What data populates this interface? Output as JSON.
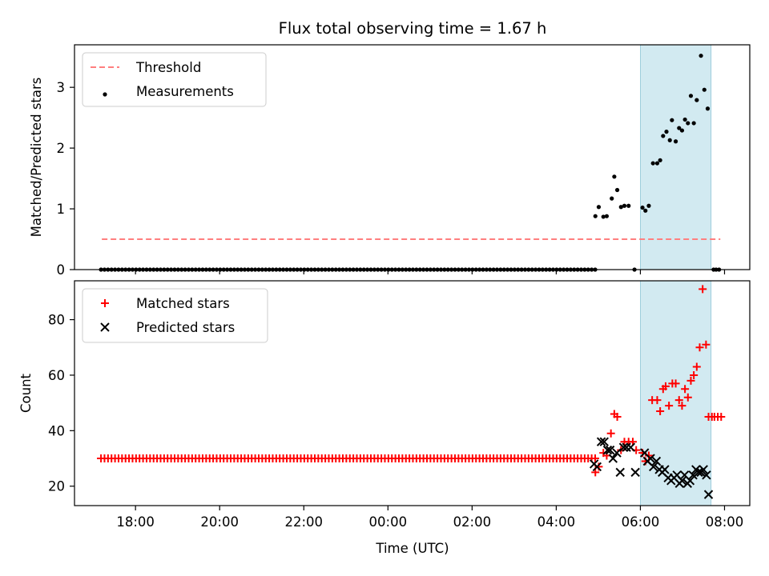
{
  "chart_data": {
    "type": "scatter",
    "title": "Flux total observing time = 1.67 h",
    "xlabel": "Time (UTC)",
    "x_unit": "hours of day (UTC)",
    "xlim": [
      16.55,
      32.6
    ],
    "xticks": [
      {
        "value": 18,
        "label": "18:00"
      },
      {
        "value": 20,
        "label": "20:00"
      },
      {
        "value": 22,
        "label": "22:00"
      },
      {
        "value": 24,
        "label": "00:00"
      },
      {
        "value": 26,
        "label": "02:00"
      },
      {
        "value": 28,
        "label": "04:00"
      },
      {
        "value": 30,
        "label": "06:00"
      },
      {
        "value": 32,
        "label": "08:00"
      }
    ],
    "highlight_span": {
      "from": 30.0,
      "to": 31.68,
      "color": "#add8e6"
    },
    "panels": [
      {
        "id": "ratio",
        "ylabel": "Matched/Predicted stars",
        "ylim": [
          0,
          3.7
        ],
        "yticks": [
          0,
          1,
          2,
          3
        ],
        "threshold": {
          "name": "Threshold",
          "value": 0.5,
          "x_from": 17.2,
          "x_to": 31.9,
          "color": "#ff7f7f"
        },
        "series": [
          {
            "name": "Measurements",
            "marker": "dot",
            "color": "#000000",
            "points": [
              [
                28.93,
                0.88
              ],
              [
                29.01,
                1.03
              ],
              [
                29.12,
                0.87
              ],
              [
                29.2,
                0.88
              ],
              [
                29.32,
                1.17
              ],
              [
                29.38,
                1.53
              ],
              [
                29.45,
                1.31
              ],
              [
                29.54,
                1.03
              ],
              [
                29.62,
                1.05
              ],
              [
                29.72,
                1.05
              ],
              [
                29.86,
                0.0
              ],
              [
                30.05,
                1.02
              ],
              [
                30.12,
                0.97
              ],
              [
                30.2,
                1.05
              ],
              [
                30.3,
                1.75
              ],
              [
                30.4,
                1.75
              ],
              [
                30.47,
                1.8
              ],
              [
                30.54,
                2.2
              ],
              [
                30.62,
                2.27
              ],
              [
                30.7,
                2.13
              ],
              [
                30.75,
                2.46
              ],
              [
                30.84,
                2.11
              ],
              [
                30.92,
                2.33
              ],
              [
                30.99,
                2.29
              ],
              [
                31.06,
                2.47
              ],
              [
                31.13,
                2.41
              ],
              [
                31.2,
                2.86
              ],
              [
                31.27,
                2.41
              ],
              [
                31.34,
                2.79
              ],
              [
                31.44,
                3.52
              ],
              [
                31.52,
                2.96
              ],
              [
                31.6,
                2.65
              ],
              [
                31.74,
                0.0
              ],
              [
                31.8,
                0.0
              ],
              [
                31.87,
                0.0
              ]
            ],
            "zero_run": {
              "from": 17.18,
              "to": 28.95,
              "step": 0.0833,
              "value": 0.0
            }
          }
        ],
        "legend": [
          "Threshold",
          "Measurements"
        ],
        "legend_loc": "upper left"
      },
      {
        "id": "counts",
        "ylabel": "Count",
        "ylim": [
          13,
          94
        ],
        "yticks": [
          20,
          40,
          60,
          80
        ],
        "series": [
          {
            "name": "Matched stars",
            "marker": "plus",
            "color": "#ff0000",
            "points": [
              [
                28.93,
                25
              ],
              [
                29.01,
                27
              ],
              [
                29.12,
                32
              ],
              [
                29.2,
                31
              ],
              [
                29.3,
                39
              ],
              [
                29.38,
                46
              ],
              [
                29.45,
                45
              ],
              [
                29.54,
                33
              ],
              [
                29.62,
                36
              ],
              [
                29.72,
                36
              ],
              [
                29.82,
                36
              ],
              [
                29.9,
                33
              ],
              [
                30.05,
                32
              ],
              [
                30.12,
                29
              ],
              [
                30.2,
                31
              ],
              [
                30.28,
                51
              ],
              [
                30.4,
                51
              ],
              [
                30.47,
                47
              ],
              [
                30.54,
                55
              ],
              [
                30.6,
                56
              ],
              [
                30.68,
                49
              ],
              [
                30.76,
                57
              ],
              [
                30.84,
                57
              ],
              [
                30.92,
                51
              ],
              [
                30.99,
                49
              ],
              [
                31.06,
                55
              ],
              [
                31.13,
                52
              ],
              [
                31.2,
                58
              ],
              [
                31.27,
                60
              ],
              [
                31.34,
                63
              ],
              [
                31.41,
                70
              ],
              [
                31.48,
                91
              ],
              [
                31.56,
                71
              ],
              [
                31.62,
                45
              ],
              [
                31.7,
                45
              ],
              [
                31.76,
                45
              ],
              [
                31.84,
                45
              ],
              [
                31.92,
                45
              ]
            ],
            "zero_run": {
              "from": 17.18,
              "to": 28.95,
              "step": 0.0833,
              "value": 30
            }
          },
          {
            "name": "Predicted stars",
            "marker": "x",
            "color": "#000000",
            "points": [
              [
                28.9,
                28
              ],
              [
                28.97,
                27
              ],
              [
                29.07,
                36
              ],
              [
                29.14,
                36
              ],
              [
                29.22,
                33
              ],
              [
                29.28,
                33
              ],
              [
                29.35,
                30
              ],
              [
                29.44,
                32
              ],
              [
                29.52,
                25
              ],
              [
                29.6,
                34
              ],
              [
                29.67,
                34
              ],
              [
                29.77,
                34
              ],
              [
                29.88,
                25
              ],
              [
                30.1,
                32
              ],
              [
                30.17,
                29
              ],
              [
                30.24,
                30
              ],
              [
                30.31,
                27
              ],
              [
                30.38,
                29
              ],
              [
                30.45,
                26
              ],
              [
                30.52,
                25
              ],
              [
                30.58,
                26
              ],
              [
                30.66,
                23
              ],
              [
                30.73,
                22
              ],
              [
                30.8,
                23
              ],
              [
                30.87,
                24
              ],
              [
                30.93,
                21
              ],
              [
                30.99,
                22
              ],
              [
                31.05,
                24
              ],
              [
                31.12,
                21
              ],
              [
                31.18,
                22
              ],
              [
                31.25,
                24
              ],
              [
                31.32,
                26
              ],
              [
                31.38,
                25
              ],
              [
                31.44,
                25
              ],
              [
                31.5,
                26
              ],
              [
                31.57,
                24
              ],
              [
                31.62,
                17
              ]
            ]
          }
        ],
        "legend": [
          "Matched stars",
          "Predicted stars"
        ],
        "legend_loc": "upper left"
      }
    ]
  }
}
